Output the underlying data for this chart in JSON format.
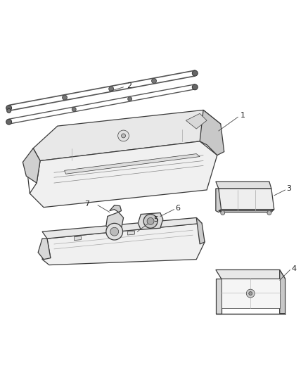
{
  "background_color": "#ffffff",
  "line_color": "#3a3a3a",
  "label_color": "#222222",
  "fig_width": 4.38,
  "fig_height": 5.33,
  "dpi": 100,
  "lw_main": 0.9,
  "lw_thin": 0.5,
  "lw_detail": 0.4
}
